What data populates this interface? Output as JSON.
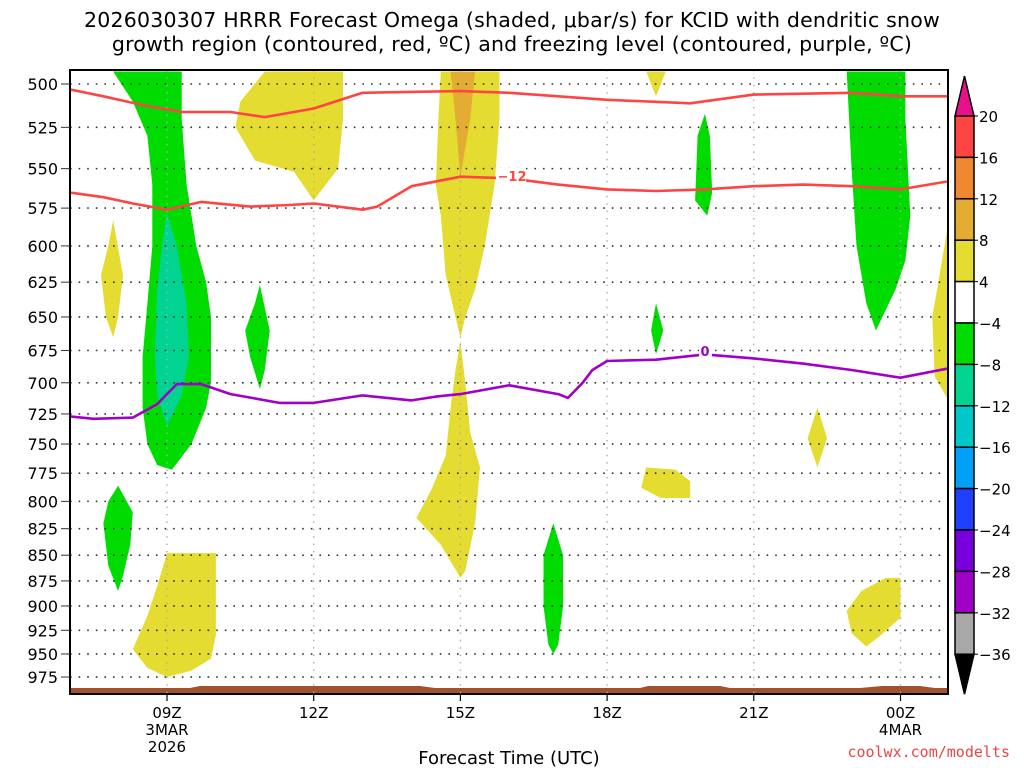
{
  "chart_data": {
    "type": "heatmap",
    "title_lines": [
      "2026030307 HRRR Forecast Omega (shaded, μbar/s) for KCID with dendritic snow",
      "growth region (contoured, red, ºC) and freezing level (contoured, purple, ºC)"
    ],
    "xlabel": "Forecast Time (UTC)",
    "ylabel": "",
    "credit": "coolwx.com/modelts",
    "x_range_hours": [
      7.0,
      24.95
    ],
    "y_range_hpa": [
      493,
      985
    ],
    "y_scale": "log",
    "grid": true,
    "x_ticks": [
      {
        "hour": 9,
        "lines": [
          "09Z",
          "3MAR",
          "2026"
        ]
      },
      {
        "hour": 12,
        "lines": [
          "12Z"
        ]
      },
      {
        "hour": 15,
        "lines": [
          "15Z"
        ]
      },
      {
        "hour": 18,
        "lines": [
          "18Z"
        ]
      },
      {
        "hour": 21,
        "lines": [
          "21Z"
        ]
      },
      {
        "hour": 24,
        "lines": [
          "00Z",
          "4MAR"
        ]
      }
    ],
    "y_ticks": [
      500,
      525,
      550,
      575,
      600,
      625,
      650,
      675,
      700,
      725,
      750,
      775,
      800,
      825,
      850,
      875,
      900,
      925,
      950,
      975
    ],
    "colorbar": {
      "labels": [
        "20",
        "16",
        "12",
        "8",
        "4",
        "−4",
        "−8",
        "−12",
        "−16",
        "−20",
        "−24",
        "−28",
        "−32",
        "−36"
      ],
      "over_color": "#e8108c",
      "under_color": "#000000",
      "bins": [
        {
          "range": "16 to 20",
          "color": "#ff4444"
        },
        {
          "range": "12 to 16",
          "color": "#f08830"
        },
        {
          "range": "8 to 12",
          "color": "#e4ac30"
        },
        {
          "range": "4 to 8",
          "color": "#e4dc30"
        },
        {
          "range": "-4 to 4",
          "color": "#ffffff"
        },
        {
          "range": "-8 to -4",
          "color": "#00dc00"
        },
        {
          "range": "-12 to -8",
          "color": "#00d490"
        },
        {
          "range": "-16 to -12",
          "color": "#00c8c8"
        },
        {
          "range": "-20 to -16",
          "color": "#00a0f8"
        },
        {
          "range": "-24 to -20",
          "color": "#2040ff"
        },
        {
          "range": "-28 to -24",
          "color": "#7800dc"
        },
        {
          "range": "-32 to -28",
          "color": "#a000c8"
        },
        {
          "range": "-36 to -32",
          "color": "#a8a8a8"
        }
      ]
    },
    "shaded_regions": [
      {
        "name": "green-plume-09z",
        "bin": "-8 to -4",
        "color": "#00dc00",
        "points": [
          [
            7.9,
            493
          ],
          [
            9.3,
            493
          ],
          [
            9.3,
            520
          ],
          [
            9.4,
            560
          ],
          [
            9.6,
            600
          ],
          [
            9.8,
            625
          ],
          [
            9.9,
            650
          ],
          [
            9.9,
            700
          ],
          [
            9.8,
            720
          ],
          [
            9.5,
            750
          ],
          [
            9.1,
            772
          ],
          [
            8.8,
            768
          ],
          [
            8.6,
            750
          ],
          [
            8.5,
            720
          ],
          [
            8.5,
            680
          ],
          [
            8.6,
            640
          ],
          [
            8.7,
            600
          ],
          [
            8.7,
            560
          ],
          [
            8.6,
            530
          ],
          [
            8.3,
            510
          ]
        ]
      },
      {
        "name": "teal-core-09z",
        "bin": "-12 to -8",
        "color": "#00d490",
        "points": [
          [
            9.0,
            578
          ],
          [
            9.2,
            600
          ],
          [
            9.4,
            640
          ],
          [
            9.45,
            680
          ],
          [
            9.3,
            710
          ],
          [
            9.0,
            735
          ],
          [
            8.8,
            710
          ],
          [
            8.75,
            680
          ],
          [
            8.8,
            630
          ],
          [
            8.9,
            600
          ]
        ]
      },
      {
        "name": "yellow-0730",
        "bin": "4 to 8",
        "color": "#e4dc30",
        "points": [
          [
            7.9,
            583
          ],
          [
            8.1,
            620
          ],
          [
            8.0,
            650
          ],
          [
            7.9,
            665
          ],
          [
            7.75,
            650
          ],
          [
            7.65,
            620
          ],
          [
            7.8,
            600
          ]
        ]
      },
      {
        "name": "green-0800-low",
        "bin": "-8 to -4",
        "color": "#00dc00",
        "points": [
          [
            8.0,
            786
          ],
          [
            8.3,
            810
          ],
          [
            8.25,
            840
          ],
          [
            8.1,
            870
          ],
          [
            8.0,
            885
          ],
          [
            7.8,
            860
          ],
          [
            7.7,
            820
          ],
          [
            7.8,
            800
          ]
        ]
      },
      {
        "name": "yellow-0900-low",
        "bin": "4 to 8",
        "color": "#e4dc30",
        "points": [
          [
            9.0,
            848
          ],
          [
            10.0,
            848
          ],
          [
            10.0,
            930
          ],
          [
            9.9,
            955
          ],
          [
            9.5,
            968
          ],
          [
            9.0,
            975
          ],
          [
            8.6,
            965
          ],
          [
            8.3,
            945
          ],
          [
            8.6,
            910
          ],
          [
            8.8,
            880
          ]
        ]
      },
      {
        "name": "yellow-1100-top",
        "bin": "4 to 8",
        "color": "#e4dc30",
        "points": [
          [
            11.0,
            493
          ],
          [
            12.6,
            493
          ],
          [
            12.6,
            520
          ],
          [
            12.5,
            550
          ],
          [
            12.0,
            570
          ],
          [
            11.6,
            552
          ],
          [
            10.8,
            545
          ],
          [
            10.4,
            525
          ],
          [
            10.5,
            510
          ]
        ]
      },
      {
        "name": "green-1100",
        "bin": "-8 to -4",
        "color": "#00dc00",
        "points": [
          [
            10.9,
            627
          ],
          [
            11.1,
            660
          ],
          [
            11.0,
            690
          ],
          [
            10.9,
            705
          ],
          [
            10.7,
            680
          ],
          [
            10.6,
            660
          ],
          [
            10.8,
            640
          ]
        ]
      },
      {
        "name": "yellow-15z-upper",
        "bin": "4 to 8",
        "color": "#e4dc30",
        "points": [
          [
            14.6,
            493
          ],
          [
            15.8,
            493
          ],
          [
            15.8,
            520
          ],
          [
            15.7,
            560
          ],
          [
            15.5,
            600
          ],
          [
            15.3,
            630
          ],
          [
            15.1,
            650
          ],
          [
            15.0,
            665
          ],
          [
            14.9,
            650
          ],
          [
            14.7,
            620
          ],
          [
            14.6,
            580
          ],
          [
            14.5,
            560
          ],
          [
            14.55,
            520
          ]
        ]
      },
      {
        "name": "orange-15z",
        "bin": "8 to 12",
        "color": "#e4ac30",
        "points": [
          [
            14.8,
            493
          ],
          [
            15.3,
            493
          ],
          [
            15.2,
            520
          ],
          [
            15.0,
            555
          ],
          [
            14.9,
            520
          ]
        ]
      },
      {
        "name": "yellow-15z-lower",
        "bin": "4 to 8",
        "color": "#e4dc30",
        "points": [
          [
            15.0,
            668
          ],
          [
            15.1,
            700
          ],
          [
            15.2,
            740
          ],
          [
            15.4,
            770
          ],
          [
            15.3,
            820
          ],
          [
            15.1,
            865
          ],
          [
            15.0,
            872
          ],
          [
            14.6,
            840
          ],
          [
            14.1,
            815
          ],
          [
            14.4,
            790
          ],
          [
            14.7,
            760
          ],
          [
            14.8,
            720
          ],
          [
            14.9,
            690
          ]
        ]
      },
      {
        "name": "green-1700",
        "bin": "-8 to -4",
        "color": "#00dc00",
        "points": [
          [
            16.9,
            820
          ],
          [
            17.1,
            850
          ],
          [
            17.1,
            900
          ],
          [
            17.0,
            940
          ],
          [
            16.9,
            950
          ],
          [
            16.8,
            940
          ],
          [
            16.7,
            900
          ],
          [
            16.7,
            850
          ]
        ]
      },
      {
        "name": "yellow-1900-top",
        "bin": "4 to 8",
        "color": "#e4dc30",
        "points": [
          [
            18.8,
            493
          ],
          [
            19.2,
            493
          ],
          [
            19.0,
            507
          ]
        ]
      },
      {
        "name": "green-1900-small",
        "bin": "-8 to -4",
        "color": "#00dc00",
        "points": [
          [
            19.0,
            640
          ],
          [
            19.15,
            660
          ],
          [
            19.0,
            678
          ],
          [
            18.9,
            660
          ]
        ]
      },
      {
        "name": "yellow-1900-mid",
        "bin": "4 to 8",
        "color": "#e4dc30",
        "points": [
          [
            18.8,
            770
          ],
          [
            19.4,
            772
          ],
          [
            19.7,
            782
          ],
          [
            19.7,
            797
          ],
          [
            19.1,
            797
          ],
          [
            18.7,
            788
          ]
        ]
      },
      {
        "name": "green-2000",
        "bin": "-8 to -4",
        "color": "#00dc00",
        "points": [
          [
            20.0,
            517
          ],
          [
            20.1,
            530
          ],
          [
            20.15,
            565
          ],
          [
            20.05,
            580
          ],
          [
            19.8,
            570
          ],
          [
            19.85,
            530
          ]
        ]
      },
      {
        "name": "yellow-2200",
        "bin": "4 to 8",
        "color": "#e4dc30",
        "points": [
          [
            22.3,
            720
          ],
          [
            22.5,
            745
          ],
          [
            22.3,
            770
          ],
          [
            22.1,
            745
          ]
        ]
      },
      {
        "name": "green-2300",
        "bin": "-8 to -4",
        "color": "#00dc00",
        "points": [
          [
            22.9,
            493
          ],
          [
            24.1,
            493
          ],
          [
            24.1,
            520
          ],
          [
            24.2,
            580
          ],
          [
            24.1,
            610
          ],
          [
            23.9,
            630
          ],
          [
            23.5,
            660
          ],
          [
            23.3,
            640
          ],
          [
            23.1,
            600
          ],
          [
            23.0,
            550
          ]
        ]
      },
      {
        "name": "yellow-2330-low",
        "bin": "4 to 8",
        "color": "#e4dc30",
        "points": [
          [
            23.7,
            872
          ],
          [
            24.0,
            872
          ],
          [
            24.0,
            912
          ],
          [
            23.6,
            930
          ],
          [
            23.3,
            942
          ],
          [
            23.0,
            928
          ],
          [
            22.9,
            905
          ],
          [
            23.2,
            885
          ]
        ]
      },
      {
        "name": "yellow-right-edge",
        "bin": "4 to 8",
        "color": "#e4dc30",
        "points": [
          [
            24.95,
            590
          ],
          [
            24.95,
            712
          ],
          [
            24.7,
            695
          ],
          [
            24.65,
            650
          ],
          [
            24.8,
            620
          ]
        ]
      }
    ],
    "contours": [
      {
        "name": "dgz-upper",
        "label": "",
        "color": "#ff4444",
        "temp_c": -17,
        "points": [
          [
            7.0,
            503
          ],
          [
            7.7,
            507
          ],
          [
            8.5,
            512
          ],
          [
            9.3,
            516
          ],
          [
            10.3,
            516
          ],
          [
            11.0,
            519
          ],
          [
            12.0,
            514
          ],
          [
            13.0,
            505
          ],
          [
            15.0,
            504
          ],
          [
            16.0,
            505
          ],
          [
            18.0,
            509
          ],
          [
            19.7,
            511
          ],
          [
            21.0,
            506
          ],
          [
            23.0,
            505
          ],
          [
            24.0,
            507
          ],
          [
            24.95,
            507
          ]
        ]
      },
      {
        "name": "dgz-lower",
        "label": "−12",
        "color": "#ff4444",
        "temp_c": -12,
        "points": [
          [
            7.0,
            565
          ],
          [
            7.7,
            568
          ],
          [
            8.3,
            572
          ],
          [
            9.0,
            576
          ],
          [
            9.7,
            571
          ],
          [
            10.7,
            574
          ],
          [
            11.5,
            573
          ],
          [
            12.0,
            572
          ],
          [
            13.0,
            576
          ],
          [
            13.3,
            574
          ],
          [
            14.0,
            561
          ],
          [
            15.0,
            555
          ],
          [
            16.0,
            556
          ],
          [
            17.0,
            560
          ],
          [
            18.0,
            563
          ],
          [
            19.0,
            564
          ],
          [
            20.0,
            563
          ],
          [
            21.0,
            561
          ],
          [
            22.0,
            560
          ],
          [
            23.0,
            561
          ],
          [
            24.0,
            563
          ],
          [
            24.95,
            558
          ]
        ]
      },
      {
        "name": "freezing-level",
        "label": "0",
        "color": "#a000c8",
        "temp_c": 0,
        "points": [
          [
            7.0,
            727
          ],
          [
            7.5,
            729
          ],
          [
            8.3,
            728
          ],
          [
            8.8,
            717
          ],
          [
            9.2,
            701
          ],
          [
            9.7,
            701
          ],
          [
            10.3,
            709
          ],
          [
            11.3,
            716
          ],
          [
            12.0,
            716
          ],
          [
            13.0,
            710
          ],
          [
            14.0,
            714
          ],
          [
            14.5,
            711
          ],
          [
            15.0,
            709
          ],
          [
            16.0,
            702
          ],
          [
            17.0,
            709
          ],
          [
            17.2,
            712
          ],
          [
            17.5,
            700
          ],
          [
            17.7,
            690
          ],
          [
            18.0,
            683
          ],
          [
            19.0,
            682
          ],
          [
            20.0,
            678
          ],
          [
            21.0,
            681
          ],
          [
            22.0,
            685
          ],
          [
            23.0,
            690
          ],
          [
            24.0,
            696
          ],
          [
            24.95,
            689
          ]
        ]
      }
    ],
    "terrain": {
      "color": "#a0522d",
      "surface_pressure_hpa": 986
    }
  }
}
